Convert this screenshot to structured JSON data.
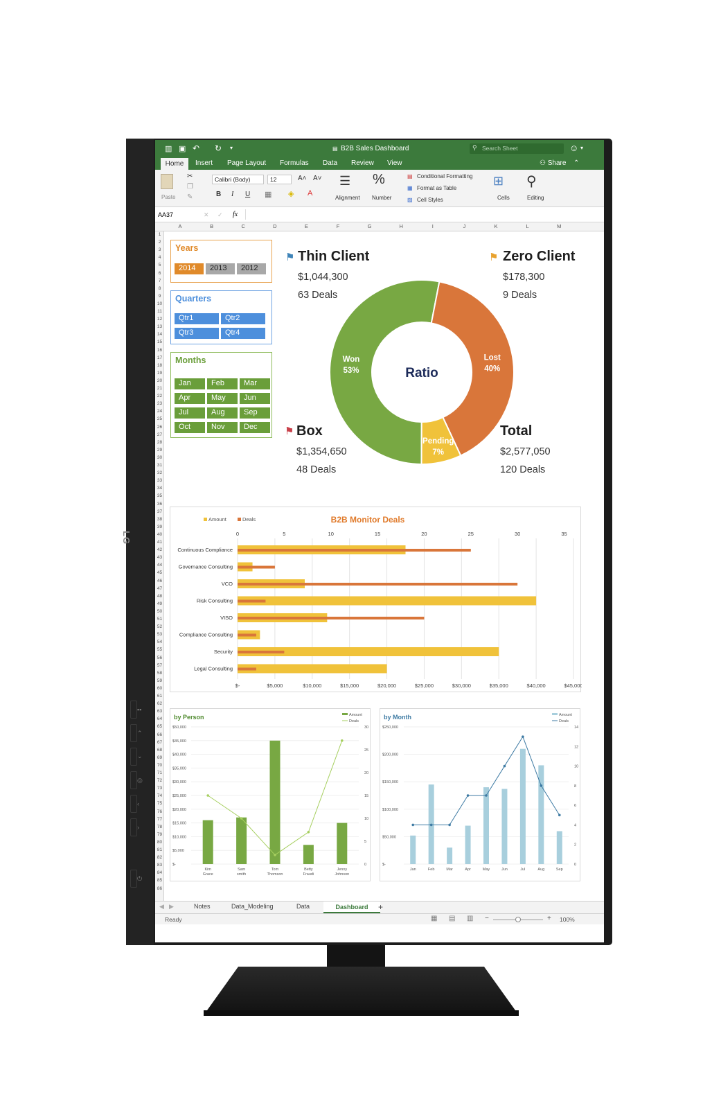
{
  "app": {
    "title": "B2B Sales Dashboard",
    "search_placeholder": "Search Sheet",
    "share_label": "Share",
    "ribbon_tabs": [
      "Home",
      "Insert",
      "Page Layout",
      "Formulas",
      "Data",
      "Review",
      "View"
    ],
    "font_name": "Calibri (Body)",
    "font_size": "12",
    "paste_label": "Paste",
    "alignment_label": "Alignment",
    "number_label": "Number",
    "cells_label": "Cells",
    "editing_label": "Editing",
    "conditional_formatting": "Conditional Formatting",
    "format_as_table": "Format as Table",
    "cell_styles": "Cell Styles",
    "bold": "B",
    "italic": "I",
    "underline": "U",
    "name_box": "AA37",
    "fx": "fx",
    "columns": [
      "A",
      "B",
      "C",
      "D",
      "E",
      "F",
      "G",
      "H",
      "I",
      "J",
      "K",
      "L",
      "M"
    ],
    "rows_count": 86,
    "sheet_tabs": [
      "Notes",
      "Data_Modeling",
      "Data",
      "Dashboard"
    ],
    "active_sheet": "Dashboard",
    "add_sheet": "+",
    "status": "Ready",
    "zoom": "100%"
  },
  "slicers": {
    "years": {
      "title": "Years",
      "items": [
        "2014",
        "2013",
        "2012"
      ],
      "selected": "2014"
    },
    "quarters": {
      "title": "Quarters",
      "items": [
        "Qtr1",
        "Qtr2",
        "Qtr3",
        "Qtr4"
      ]
    },
    "months": {
      "title": "Months",
      "items": [
        "Jan",
        "Feb",
        "Mar",
        "Apr",
        "May",
        "Jun",
        "Jul",
        "Aug",
        "Sep",
        "Oct",
        "Nov",
        "Dec"
      ]
    }
  },
  "kpis": {
    "thin_client": {
      "title": "Thin Client",
      "amount": "$1,044,300",
      "deals": "63 Deals"
    },
    "zero_client": {
      "title": "Zero Client",
      "amount": "$178,300",
      "deals": "9 Deals"
    },
    "box": {
      "title": "Box",
      "amount": "$1,354,650",
      "deals": "48 Deals"
    },
    "total": {
      "title": "Total",
      "amount": "$2,577,050",
      "deals": "120 Deals"
    }
  },
  "colors": {
    "green": "#78a843",
    "orange": "#d9763a",
    "yellow": "#f0c23a",
    "excel_green": "#3c7a3c",
    "bar_amount": "#f0c23a",
    "bar_deals": "#d9763a",
    "person_bar": "#78a843",
    "person_line": "#a6cf5f",
    "month_bar": "#a8cfdd",
    "month_line": "#3d7aa3"
  },
  "chart_data": [
    {
      "type": "pie",
      "center_label": "Ratio",
      "slices": [
        {
          "label": "Won",
          "value": 53,
          "text": "53%"
        },
        {
          "label": "Lost",
          "value": 40,
          "text": "40%"
        },
        {
          "label": "Pending",
          "value": 7,
          "text": "7%"
        }
      ]
    },
    {
      "type": "bar",
      "title": "B2B Monitor Deals",
      "legend": [
        "Amount",
        "Deals"
      ],
      "categories": [
        "Continuous Compliance",
        "Governance Consulting",
        "VCO",
        "Risk Consulting",
        "VISO",
        "Compliance Consulting",
        "Security",
        "Legal Consulting"
      ],
      "series": [
        {
          "name": "Amount",
          "values": [
            22500,
            2000,
            9000,
            40000,
            12000,
            3000,
            35000,
            20000
          ],
          "axis": "bottom",
          "ticks": [
            "$-",
            "$5,000",
            "$10,000",
            "$15,000",
            "$20,000",
            "$25,000",
            "$30,000",
            "$35,000",
            "$40,000",
            "$45,000"
          ],
          "max": 45000
        },
        {
          "name": "Deals",
          "values": [
            25,
            4,
            30,
            3,
            20,
            2,
            5,
            2
          ],
          "axis": "top",
          "ticks": [
            "0",
            "5",
            "10",
            "15",
            "20",
            "25",
            "30",
            "35"
          ],
          "max": 35
        }
      ]
    },
    {
      "type": "bar",
      "title": "by Person",
      "legend": [
        "Amount",
        "Deals"
      ],
      "categories": [
        "Kim Grace",
        "Sam smith",
        "Tom Thomson",
        "Betty Fraudi",
        "Jenny Johnson"
      ],
      "series": [
        {
          "name": "Amount",
          "values": [
            16000,
            17000,
            45000,
            7000,
            15000
          ],
          "max": 50000,
          "ticks": [
            "$-",
            "$5,000",
            "$10,000",
            "$15,000",
            "$20,000",
            "$25,000",
            "$30,000",
            "$35,000",
            "$40,000",
            "$45,000",
            "$50,000"
          ]
        },
        {
          "name": "Deals",
          "values": [
            15,
            10,
            2,
            7,
            27
          ],
          "max": 30,
          "ticks": [
            "0",
            "5",
            "10",
            "15",
            "20",
            "25",
            "30"
          ]
        }
      ]
    },
    {
      "type": "bar",
      "title": "by Month",
      "legend": [
        "Amount",
        "Deals"
      ],
      "categories": [
        "Jan",
        "Feb",
        "Mar",
        "Apr",
        "May",
        "Jun",
        "Jul",
        "Aug",
        "Sep"
      ],
      "series": [
        {
          "name": "Amount",
          "values": [
            52000,
            145000,
            30000,
            70000,
            140000,
            137000,
            210000,
            180000,
            60000
          ],
          "max": 250000,
          "ticks": [
            "$-",
            "$50,000",
            "$100,000",
            "$150,000",
            "$200,000",
            "$250,000"
          ]
        },
        {
          "name": "Deals",
          "values": [
            4,
            4,
            4,
            7,
            7,
            10,
            13,
            8,
            5
          ],
          "max": 14,
          "ticks": [
            "0",
            "2",
            "4",
            "6",
            "8",
            "10",
            "12",
            "14"
          ]
        }
      ]
    }
  ]
}
